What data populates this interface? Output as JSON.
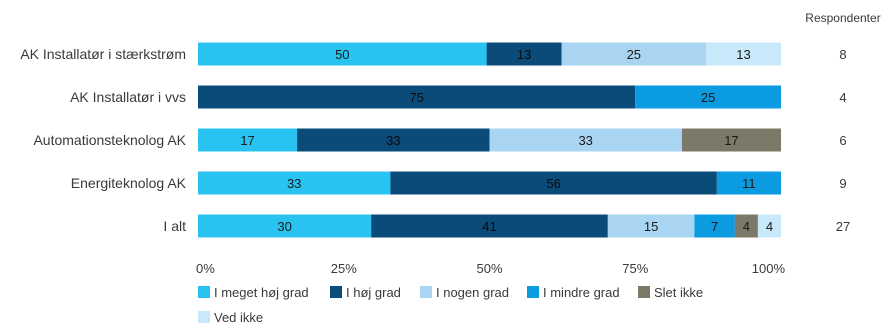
{
  "chart_data": {
    "type": "bar",
    "orientation": "horizontal",
    "stacked": true,
    "percent": true,
    "categories": [
      "AK Installatør i stærkstrøm",
      "AK Installatør i vvs",
      "Automationsteknolog AK",
      "Energiteknolog AK",
      "I alt"
    ],
    "series": [
      {
        "name": "I meget høj grad",
        "color": "#29c3f1",
        "values": [
          50,
          0,
          17,
          33,
          30
        ]
      },
      {
        "name": "I høj grad",
        "color": "#0b4b7a",
        "values": [
          13,
          75,
          33,
          56,
          41
        ]
      },
      {
        "name": "I nogen grad",
        "color": "#a9d5f2",
        "values": [
          25,
          0,
          33,
          0,
          15
        ]
      },
      {
        "name": "I mindre grad",
        "color": "#0a9be0",
        "values": [
          0,
          25,
          0,
          11,
          7
        ]
      },
      {
        "name": "Slet ikke",
        "color": "#7b7967",
        "values": [
          0,
          0,
          17,
          0,
          4
        ]
      },
      {
        "name": "Ved ikke",
        "color": "#c7e9fa",
        "values": [
          13,
          0,
          0,
          0,
          4
        ]
      }
    ],
    "respondents_header": "Respondenter",
    "respondents": [
      8,
      4,
      6,
      9,
      27
    ],
    "x_ticks": [
      "0%",
      "25%",
      "50%",
      "75%",
      "100%"
    ],
    "xlim": [
      0,
      100
    ],
    "grid": false,
    "legend_position": "bottom"
  }
}
